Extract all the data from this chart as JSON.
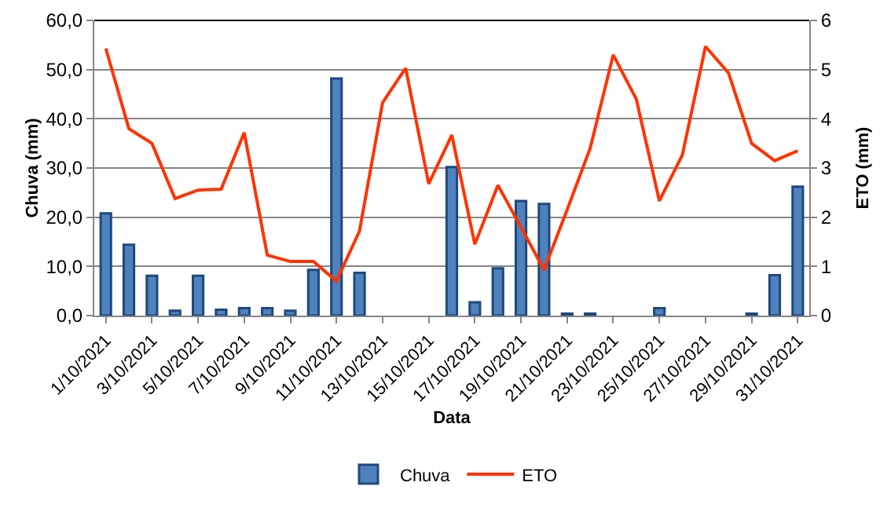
{
  "chart_data": {
    "type": "bar",
    "xlabel": "Data",
    "ylabel": "Chuva (mm)",
    "y2label": "ETO (mm)",
    "categories": [
      "1/10/2021",
      null,
      "3/10/2021",
      null,
      "5/10/2021",
      null,
      "7/10/2021",
      null,
      "9/10/2021",
      null,
      "11/10/2021",
      null,
      "13/10/2021",
      null,
      "15/10/2021",
      null,
      "17/10/2021",
      null,
      "19/10/2021",
      null,
      "21/10/2021",
      null,
      "23/10/2021",
      null,
      "25/10/2021",
      null,
      "27/10/2021",
      null,
      "29/10/2021",
      null,
      "31/10/2021"
    ],
    "series": [
      {
        "name": "Chuva",
        "color": "#4f81bd",
        "values": [
          20.8,
          14.4,
          8.1,
          1.0,
          8.1,
          1.2,
          1.5,
          1.5,
          1.0,
          9.3,
          48.2,
          8.7,
          0,
          0,
          0,
          30.2,
          2.7,
          9.6,
          23.3,
          22.7,
          0.4,
          0.4,
          0,
          0,
          1.5,
          0,
          0,
          0,
          0.4,
          8.2,
          26.2
        ]
      },
      {
        "name": "ETO",
        "type": "line",
        "axis": "y2",
        "color": "#ff3300",
        "values": [
          5.43,
          3.8,
          3.5,
          2.38,
          2.55,
          2.57,
          3.72,
          1.23,
          1.1,
          1.1,
          0.7,
          1.72,
          4.33,
          5.03,
          2.68,
          3.67,
          1.45,
          2.65,
          1.8,
          0.93,
          2.15,
          3.4,
          5.3,
          4.4,
          2.33,
          3.27,
          5.47,
          4.93,
          3.5,
          3.15,
          3.35
        ]
      }
    ],
    "ylim": [
      0,
      60
    ],
    "yticks": [
      {
        "value": 0,
        "label": "0,0"
      },
      {
        "value": 10,
        "label": "10,0"
      },
      {
        "value": 20,
        "label": "20,0"
      },
      {
        "value": 30,
        "label": "30,0"
      },
      {
        "value": 40,
        "label": "40,0"
      },
      {
        "value": 50,
        "label": "50,0"
      },
      {
        "value": 60,
        "label": "60,0"
      }
    ],
    "y2lim": [
      0,
      6
    ],
    "y2ticks": [
      0,
      1,
      2,
      3,
      4,
      5,
      6
    ],
    "grid": "y",
    "legend": "bottom",
    "marker": "none",
    "line_style": "solid"
  }
}
